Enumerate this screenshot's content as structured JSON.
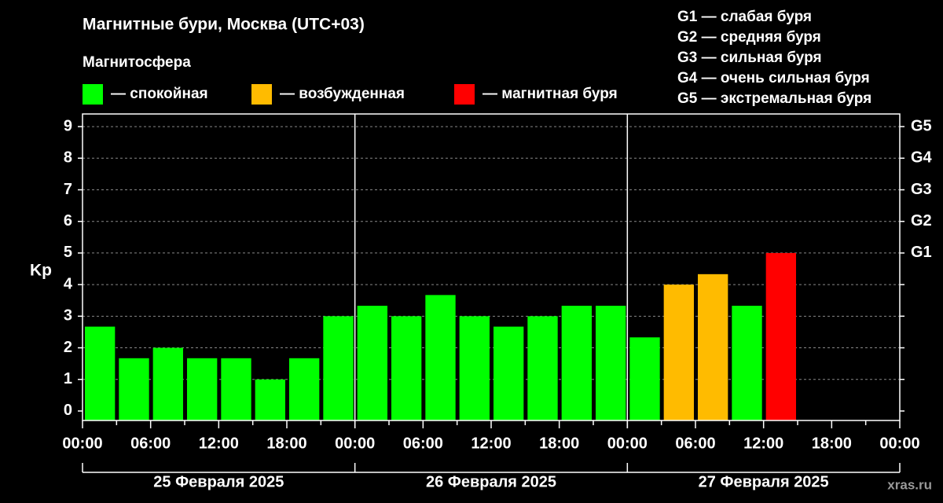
{
  "chart_data": {
    "type": "bar",
    "title": "Магнитные бури, Москва (UTC+03)",
    "legend_title": "Магнитосфера",
    "legend": [
      {
        "label": "— спокойная",
        "color": "#00ff00"
      },
      {
        "label": "— возбужденная",
        "color": "#ffbb00"
      },
      {
        "label": "— магнитная буря",
        "color": "#ff0000"
      }
    ],
    "scale_notes": [
      "G1 — слабая буря",
      "G2 — средняя буря",
      "G3 — сильная буря",
      "G4 — очень сильная буря",
      "G5 — экстремальная буря"
    ],
    "y_label": "Kp",
    "x": [
      1.5,
      4.5,
      7.5,
      10.5,
      13.5,
      16.5,
      19.5,
      22.5,
      25.5,
      28.5,
      31.5,
      34.5,
      37.5,
      40.5,
      43.5,
      46.5,
      49.5,
      52.5,
      55.5,
      58.5,
      61.5
    ],
    "values": [
      2.67,
      1.67,
      2,
      1.67,
      1.67,
      1,
      1.67,
      3,
      3.33,
      3,
      3.67,
      3,
      2.67,
      3,
      3.33,
      3.33,
      2.33,
      4,
      4.33,
      3.33,
      5
    ],
    "colors": [
      "#00ff00",
      "#00ff00",
      "#00ff00",
      "#00ff00",
      "#00ff00",
      "#00ff00",
      "#00ff00",
      "#00ff00",
      "#00ff00",
      "#00ff00",
      "#00ff00",
      "#00ff00",
      "#00ff00",
      "#00ff00",
      "#00ff00",
      "#00ff00",
      "#00ff00",
      "#ffbb00",
      "#ffbb00",
      "#00ff00",
      "#ff0000"
    ],
    "xlim": [
      0,
      72
    ],
    "xticks": [
      {
        "value": 0,
        "label": "00:00"
      },
      {
        "value": 6,
        "label": "06:00"
      },
      {
        "value": 12,
        "label": "12:00"
      },
      {
        "value": 18,
        "label": "18:00"
      },
      {
        "value": 24,
        "label": "00:00"
      },
      {
        "value": 30,
        "label": "06:00"
      },
      {
        "value": 36,
        "label": "12:00"
      },
      {
        "value": 42,
        "label": "18:00"
      },
      {
        "value": 48,
        "label": "00:00"
      },
      {
        "value": 54,
        "label": "06:00"
      },
      {
        "value": 60,
        "label": "12:00"
      },
      {
        "value": 66,
        "label": "18:00"
      },
      {
        "value": 72,
        "label": "00:00"
      }
    ],
    "days": [
      "25 Февраля 2025",
      "26 Февраля 2025",
      "27 Февраля 2025"
    ],
    "ylim": [
      -0.3,
      9.4
    ],
    "yticks": [
      0,
      1,
      2,
      3,
      4,
      5,
      6,
      7,
      8,
      9
    ],
    "y2lim": [
      -0.3,
      9.4
    ],
    "y2ticks": [
      {
        "value": 5,
        "label": "G1"
      },
      {
        "value": 6,
        "label": "G2"
      },
      {
        "value": 7,
        "label": "G3"
      },
      {
        "value": 8,
        "label": "G4"
      },
      {
        "value": 9,
        "label": "G5"
      }
    ],
    "grid": true,
    "watermark": "xras.ru"
  }
}
